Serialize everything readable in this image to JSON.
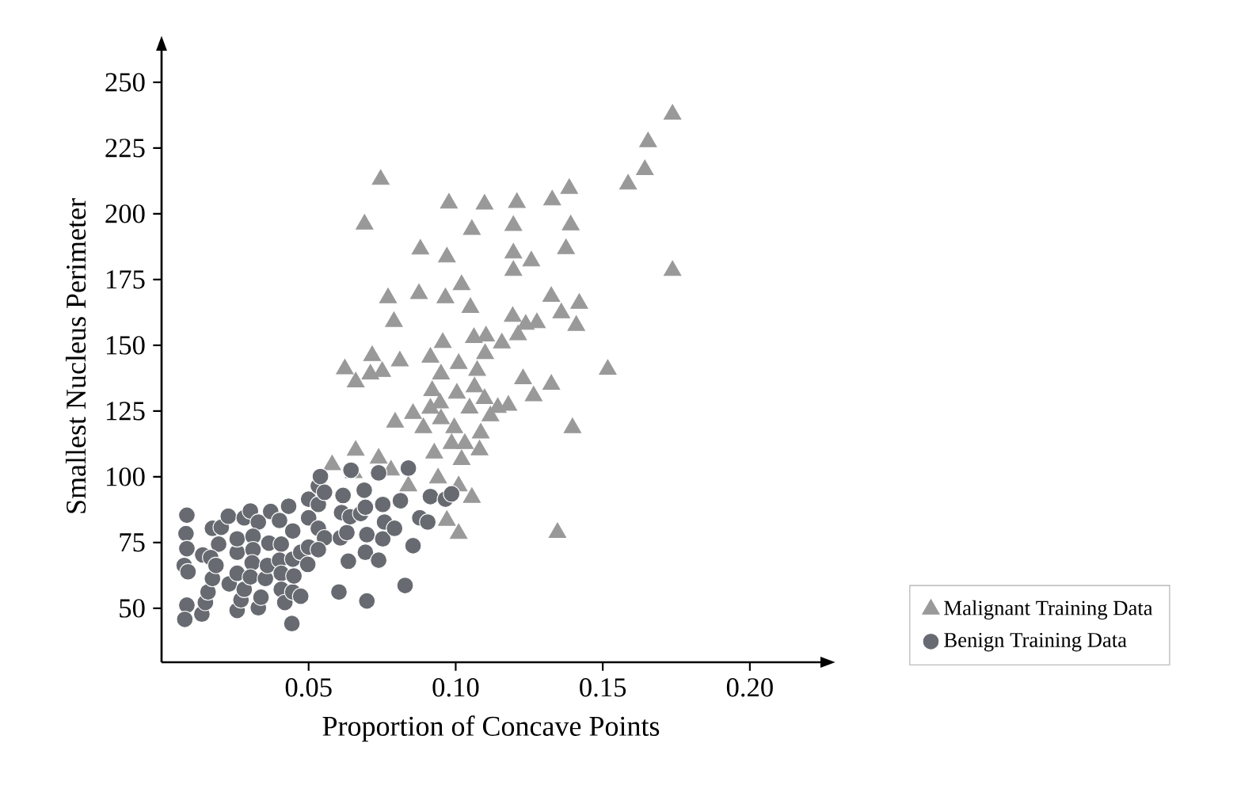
{
  "chart_data": {
    "type": "scatter",
    "xlabel": "Proportion of Concave Points",
    "ylabel": "Smallest Nucleus Perimeter",
    "xlim": [
      0,
      0.224
    ],
    "ylim": [
      29.5,
      262
    ],
    "xticks": [
      0.05,
      {
        "value": 0.1,
        "label": "0.10"
      },
      0.15,
      {
        "value": 0.2,
        "label": "0.20"
      }
    ],
    "yticks": [
      50,
      75,
      100,
      125,
      150,
      175,
      200,
      225,
      250
    ],
    "grid": false,
    "legend": "bottom right",
    "series": [
      {
        "name": "Malignant Training Data",
        "color": "#999999",
        "marker": "triangle",
        "x": [
          0.0745,
          0.0977,
          0.069,
          0.088,
          0.097,
          0.102,
          0.077,
          0.0875,
          0.0965,
          0.079,
          0.0956,
          0.0716,
          0.081,
          0.0914,
          0.0623,
          0.071,
          0.075,
          0.066,
          0.095,
          0.101,
          0.092,
          0.1004,
          0.0947,
          0.0914,
          0.0855,
          0.0794,
          0.089,
          0.095,
          0.0995,
          0.0986,
          0.0927,
          0.102,
          0.066,
          0.058,
          0.0653,
          0.0738,
          0.078,
          0.0839,
          0.094,
          0.101,
          0.097,
          0.101,
          0.1737,
          0.1654,
          0.1643,
          0.1586,
          0.1386,
          0.1328,
          0.1208,
          0.1098,
          0.1055,
          0.1196,
          0.1391,
          0.1375,
          0.1196,
          0.1257,
          0.1196,
          0.1737,
          0.105,
          0.1325,
          0.142,
          0.1359,
          0.141,
          0.1194,
          0.1238,
          0.1276,
          0.1212,
          0.1062,
          0.1103,
          0.1157,
          0.11,
          0.1073,
          0.1517,
          0.1229,
          0.1325,
          0.1265,
          0.1064,
          0.1098,
          0.1179,
          0.1143,
          0.1118,
          0.1047,
          0.1085,
          0.1397,
          0.1031,
          0.1081,
          0.1055,
          0.1346
        ],
        "values": [
          213,
          204,
          196,
          186.5,
          183.5,
          173,
          168,
          169.6,
          168,
          159,
          151,
          146,
          144,
          145.4,
          141,
          139,
          140,
          136,
          139,
          143,
          132.7,
          131.7,
          128,
          126,
          124,
          120.7,
          118.6,
          122,
          118.6,
          112.6,
          109,
          106.5,
          110,
          104.5,
          101.5,
          107,
          102.5,
          96.5,
          99.5,
          96.5,
          83.4,
          78.4,
          237.8,
          227.3,
          216.7,
          211.2,
          209.6,
          205.2,
          204.2,
          203.6,
          194,
          195.5,
          195.7,
          186.7,
          185,
          182,
          178.4,
          178.4,
          164.3,
          168.5,
          165.9,
          162.3,
          157.5,
          160.9,
          157.9,
          158.5,
          153.9,
          152.9,
          153.5,
          150.8,
          146.8,
          140.4,
          140.8,
          137.2,
          135.1,
          130.7,
          134.1,
          129.7,
          127.1,
          126.3,
          123.1,
          126.1,
          116.6,
          118.6,
          112.6,
          110.2,
          92.1,
          78.8
        ]
      },
      {
        "name": "Benign Training Data",
        "color": "#676a70",
        "marker": "circle",
        "x": [
          0.0086,
          0.0083,
          0.0086,
          0.0077,
          0.009,
          0.0086,
          0.0079,
          0.0137,
          0.0149,
          0.0158,
          0.0173,
          0.014,
          0.0173,
          0.0203,
          0.0227,
          0.0194,
          0.0167,
          0.0185,
          0.023,
          0.0257,
          0.027,
          0.0281,
          0.0257,
          0.0257,
          0.0257,
          0.0281,
          0.0302,
          0.0329,
          0.0311,
          0.0311,
          0.0308,
          0.0302,
          0.0329,
          0.0338,
          0.0353,
          0.036,
          0.0365,
          0.0371,
          0.0401,
          0.0407,
          0.0401,
          0.0407,
          0.0407,
          0.0419,
          0.0443,
          0.0446,
          0.045,
          0.0446,
          0.0446,
          0.0432,
          0.0473,
          0.0473,
          0.0497,
          0.05,
          0.05,
          0.05,
          0.0533,
          0.0533,
          0.054,
          0.0554,
          0.0533,
          0.0554,
          0.0533,
          0.0608,
          0.0612,
          0.0617,
          0.0603,
          0.0635,
          0.063,
          0.0641,
          0.0644,
          0.0677,
          0.0689,
          0.0693,
          0.0698,
          0.0693,
          0.0698,
          0.0738,
          0.0752,
          0.0758,
          0.0752,
          0.0738,
          0.0792,
          0.0812,
          0.0839,
          0.0828,
          0.0855,
          0.0878,
          0.0914,
          0.0905,
          0.0965,
          0.0986
        ],
        "values": [
          85.4,
          78.4,
          72.7,
          66.3,
          63.9,
          51.2,
          45.8,
          47.8,
          52.2,
          56.2,
          61.3,
          70.3,
          80.4,
          80.8,
          85,
          74.4,
          69.3,
          66.3,
          59.3,
          49.2,
          53.2,
          57.2,
          63.3,
          71.3,
          76.4,
          84.4,
          87,
          82.8,
          77.4,
          72.3,
          67.3,
          61.9,
          50.2,
          54.2,
          61.3,
          66.3,
          74.8,
          86.8,
          83.4,
          74.4,
          68.3,
          63.3,
          57.2,
          52.2,
          44.2,
          56.2,
          62.3,
          68.7,
          79.4,
          88.8,
          54.6,
          71.3,
          66.7,
          73.3,
          84.4,
          91.5,
          89.5,
          96.5,
          100.1,
          94.1,
          80.4,
          76.8,
          72.3,
          76.8,
          86.4,
          92.9,
          56.2,
          67.9,
          78.8,
          84.8,
          102.5,
          86,
          94.9,
          88.4,
          78,
          71.3,
          52.8,
          68.3,
          76.4,
          82.8,
          89.5,
          101.5,
          80.4,
          90.9,
          103.3,
          58.7,
          73.8,
          84.4,
          92.5,
          82.8,
          91.5,
          93.5
        ]
      }
    ]
  }
}
